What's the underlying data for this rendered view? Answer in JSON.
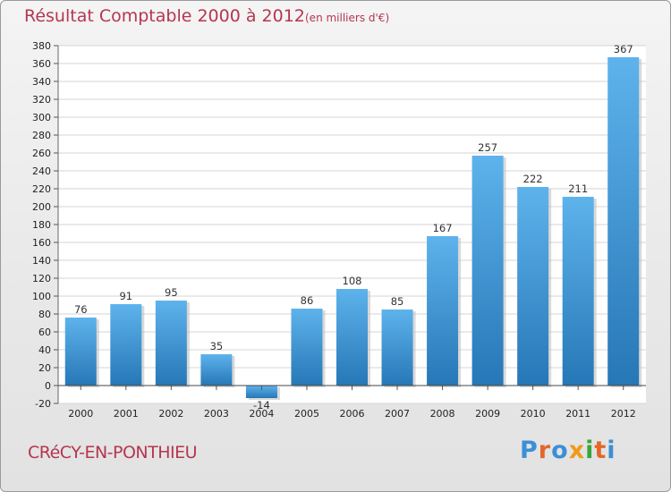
{
  "chart_data": {
    "type": "bar",
    "title": "Résultat Comptable 2000 à 2012",
    "subtitle": "(en milliers d'€)",
    "categories": [
      "2000",
      "2001",
      "2002",
      "2003",
      "2004",
      "2005",
      "2006",
      "2007",
      "2008",
      "2009",
      "2010",
      "2011",
      "2012"
    ],
    "values": [
      76,
      91,
      95,
      35,
      -14,
      86,
      108,
      85,
      167,
      257,
      222,
      211,
      367
    ],
    "data_labels": [
      "76",
      "91",
      "95",
      "35",
      "-14",
      "86",
      "108",
      "85",
      "167",
      "257",
      "222",
      "211",
      "367"
    ],
    "ylim": [
      -20,
      380
    ],
    "yticks": [
      -20,
      0,
      20,
      40,
      60,
      80,
      100,
      120,
      140,
      160,
      180,
      200,
      220,
      240,
      260,
      280,
      300,
      320,
      340,
      360,
      380
    ],
    "grid": true,
    "xlabel": "",
    "ylabel": "",
    "colors": {
      "bar_top": "#5eb3ec",
      "bar_bottom": "#2677b6",
      "title": "#b5364f"
    }
  },
  "footer": {
    "location": "CRéCY-EN-PONTHIEU",
    "brand": [
      "P",
      "r",
      "o",
      "x",
      "i",
      "t",
      "i"
    ],
    "brand_colors": [
      "#3c8fd6",
      "#e3672a",
      "#3c8fd6",
      "#ef9b1a",
      "#39a53c",
      "#e3672a",
      "#3c8fd6"
    ]
  }
}
